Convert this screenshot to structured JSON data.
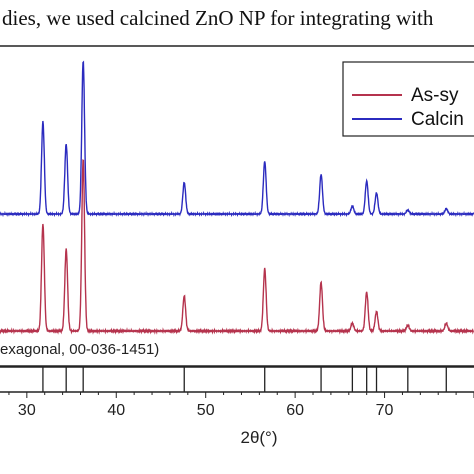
{
  "caption": {
    "top_text": "dies, we used calcined ZnO NP for integrating with"
  },
  "chart_data": {
    "type": "line",
    "xlabel": "2θ(°)",
    "xlim": [
      27,
      80
    ],
    "x_ticks": [
      30,
      40,
      50,
      60,
      70
    ],
    "legend_placement": "top-right",
    "series": [
      {
        "name": "As-sy",
        "color": "#b5334d",
        "baseline": 0.08,
        "peaks": [
          {
            "x": 31.8,
            "h": 0.55
          },
          {
            "x": 34.4,
            "h": 0.42
          },
          {
            "x": 36.3,
            "h": 0.88
          },
          {
            "x": 47.6,
            "h": 0.18
          },
          {
            "x": 56.6,
            "h": 0.32
          },
          {
            "x": 62.9,
            "h": 0.25
          },
          {
            "x": 66.4,
            "h": 0.04
          },
          {
            "x": 68.0,
            "h": 0.2
          },
          {
            "x": 69.1,
            "h": 0.1
          },
          {
            "x": 72.6,
            "h": 0.03
          },
          {
            "x": 76.9,
            "h": 0.04
          }
        ]
      },
      {
        "name": "Calcin",
        "color": "#2b2bbf",
        "baseline": 0.0,
        "peaks": [
          {
            "x": 31.8,
            "h": 0.7
          },
          {
            "x": 34.4,
            "h": 0.53
          },
          {
            "x": 36.3,
            "h": 1.16
          },
          {
            "x": 47.6,
            "h": 0.24
          },
          {
            "x": 56.6,
            "h": 0.4
          },
          {
            "x": 62.9,
            "h": 0.3
          },
          {
            "x": 66.4,
            "h": 0.06
          },
          {
            "x": 68.0,
            "h": 0.25
          },
          {
            "x": 69.1,
            "h": 0.16
          },
          {
            "x": 72.6,
            "h": 0.03
          },
          {
            "x": 76.9,
            "h": 0.04
          }
        ]
      }
    ],
    "reference": {
      "label": "exagonal, 00-036-1451)",
      "lines": [
        31.8,
        34.4,
        36.3,
        47.6,
        56.6,
        62.9,
        66.4,
        68.0,
        69.1,
        72.6,
        76.9
      ]
    }
  }
}
